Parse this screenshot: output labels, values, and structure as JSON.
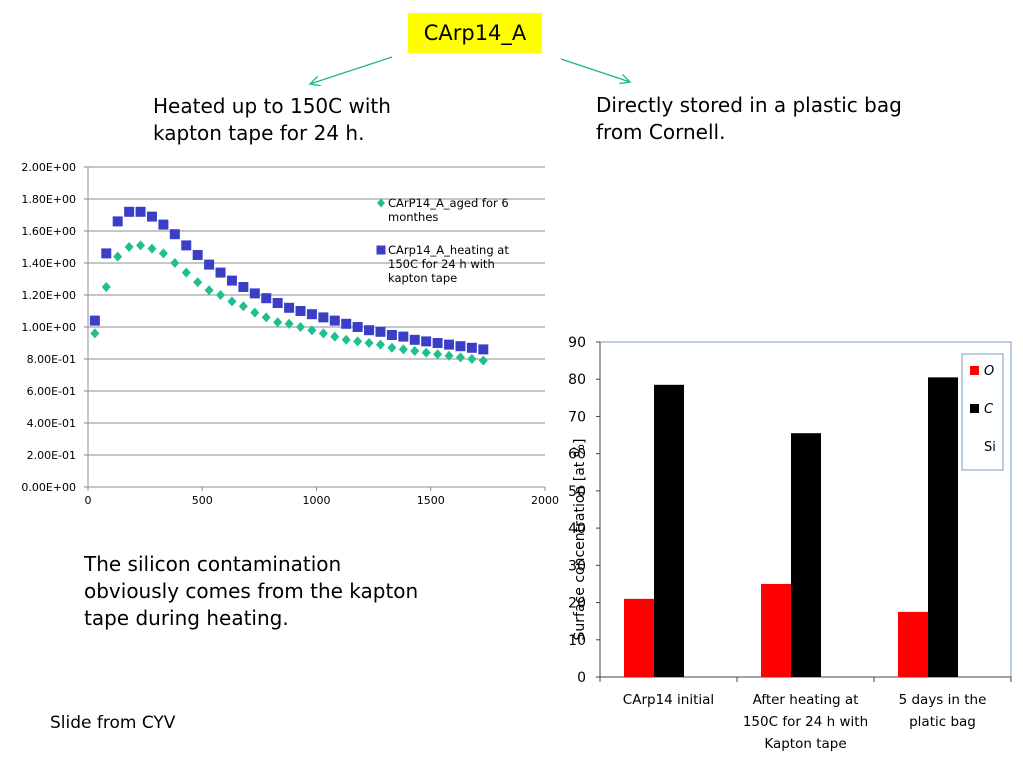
{
  "slide": {
    "title": "CArp14_A",
    "note_heated": "Heated up to 150C with kapton tape for 24 h.",
    "note_stored": "Directly stored in a plastic bag from Cornell.",
    "conclusion": "The silicon contamination obviously comes from the kapton tape during heating.",
    "credit": "Slide from CYV",
    "arrow_color": "#1fb58a"
  },
  "chart_data": [
    {
      "type": "scatter",
      "title": "",
      "xlabel": "",
      "ylabel": "",
      "xlim": [
        0,
        2000
      ],
      "ylim": [
        0,
        2
      ],
      "x_ticks": [
        0,
        500,
        1000,
        1500,
        2000
      ],
      "y_ticks": [
        0,
        0.2,
        0.4,
        0.6,
        0.8,
        1.0,
        1.2,
        1.4,
        1.6,
        1.8,
        2.0
      ],
      "y_tick_labels": [
        "0.00E+00",
        "2.00E-01",
        "4.00E-01",
        "6.00E-01",
        "8.00E-01",
        "1.00E+00",
        "1.20E+00",
        "1.40E+00",
        "1.60E+00",
        "1.80E+00",
        "2.00E+00"
      ],
      "grid": true,
      "legend_position": "top-right",
      "series": [
        {
          "name": "CArP14_A_aged for 6 monthes",
          "marker": "diamond",
          "color": "#1fbf8f",
          "x": [
            30,
            80,
            130,
            180,
            230,
            280,
            330,
            380,
            430,
            480,
            530,
            580,
            630,
            680,
            730,
            780,
            830,
            880,
            930,
            980,
            1030,
            1080,
            1130,
            1180,
            1230,
            1280,
            1330,
            1380,
            1430,
            1480,
            1530,
            1580,
            1630,
            1680,
            1730
          ],
          "y": [
            0.96,
            1.25,
            1.44,
            1.5,
            1.51,
            1.49,
            1.46,
            1.4,
            1.34,
            1.28,
            1.23,
            1.2,
            1.16,
            1.13,
            1.09,
            1.06,
            1.03,
            1.02,
            1.0,
            0.98,
            0.96,
            0.94,
            0.92,
            0.91,
            0.9,
            0.89,
            0.87,
            0.86,
            0.85,
            0.84,
            0.83,
            0.82,
            0.81,
            0.8,
            0.79
          ]
        },
        {
          "name": "CArp14_A_heating at 150C for 24 h with kapton tape",
          "marker": "square",
          "color": "#3b3fc8",
          "x": [
            30,
            80,
            130,
            180,
            230,
            280,
            330,
            380,
            430,
            480,
            530,
            580,
            630,
            680,
            730,
            780,
            830,
            880,
            930,
            980,
            1030,
            1080,
            1130,
            1180,
            1230,
            1280,
            1330,
            1380,
            1430,
            1480,
            1530,
            1580,
            1630,
            1680,
            1730
          ],
          "y": [
            1.04,
            1.46,
            1.66,
            1.72,
            1.72,
            1.69,
            1.64,
            1.58,
            1.51,
            1.45,
            1.39,
            1.34,
            1.29,
            1.25,
            1.21,
            1.18,
            1.15,
            1.12,
            1.1,
            1.08,
            1.06,
            1.04,
            1.02,
            1.0,
            0.98,
            0.97,
            0.95,
            0.94,
            0.92,
            0.91,
            0.9,
            0.89,
            0.88,
            0.87,
            0.86
          ]
        }
      ]
    },
    {
      "type": "bar",
      "title": "",
      "xlabel": "",
      "ylabel": "Surface concentration [at %]",
      "ylim": [
        0,
        90
      ],
      "y_ticks": [
        0,
        10,
        20,
        30,
        40,
        50,
        60,
        70,
        80,
        90
      ],
      "grid": false,
      "legend_position": "top-right",
      "categories": [
        "CArp14 initial",
        "After heating at 150C for 24 h with Kapton tape",
        "5 days in the platic bag"
      ],
      "category_lines": [
        [
          "CArp14 initial"
        ],
        [
          "After heating at",
          "150C for 24 h with",
          "Kapton tape"
        ],
        [
          "5 days in the",
          "platic bag"
        ]
      ],
      "series": [
        {
          "name": "O",
          "color": "#ff0000",
          "values": [
            21,
            25,
            17.5
          ]
        },
        {
          "name": "C",
          "color": "#000000",
          "values": [
            78.5,
            65.5,
            80.5
          ]
        },
        {
          "name": "Si",
          "color": "#ffffff",
          "values": [
            0,
            0,
            0
          ]
        }
      ]
    }
  ]
}
